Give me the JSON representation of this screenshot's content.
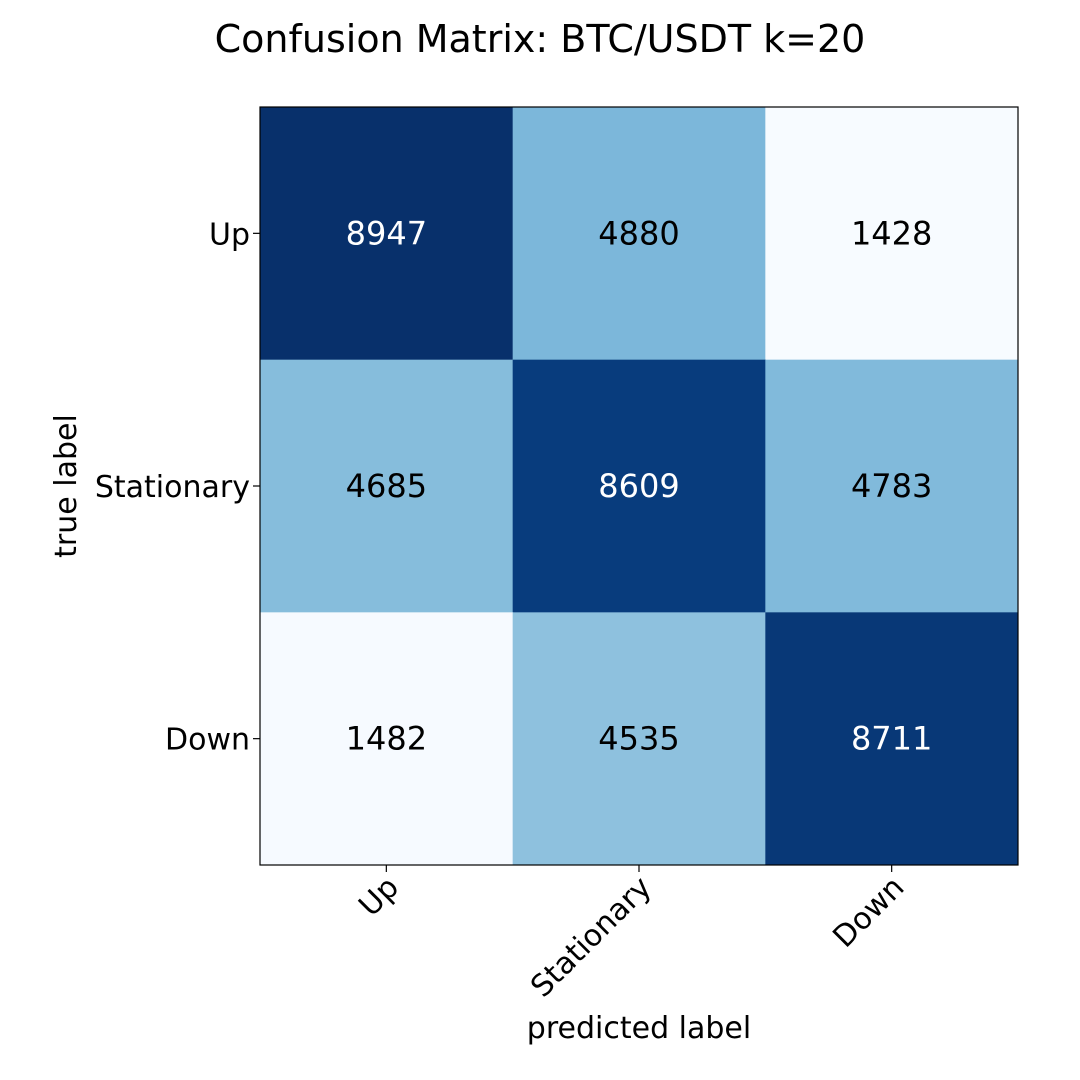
{
  "chart_data": {
    "type": "heatmap",
    "title": "Confusion Matrix: BTC/USDT k=20",
    "xlabel": "predicted label",
    "ylabel": "true label",
    "x_categories": [
      "Up",
      "Stationary",
      "Down"
    ],
    "y_categories": [
      "Up",
      "Stationary",
      "Down"
    ],
    "values": [
      [
        8947,
        4880,
        1428
      ],
      [
        4685,
        8609,
        4783
      ],
      [
        1482,
        4535,
        8711
      ]
    ],
    "colormap": "Blues",
    "color_low": "#f7fbff",
    "color_high": "#08306b",
    "text_color_dark": "#000000",
    "text_color_light": "#ffffff",
    "grid": false
  }
}
